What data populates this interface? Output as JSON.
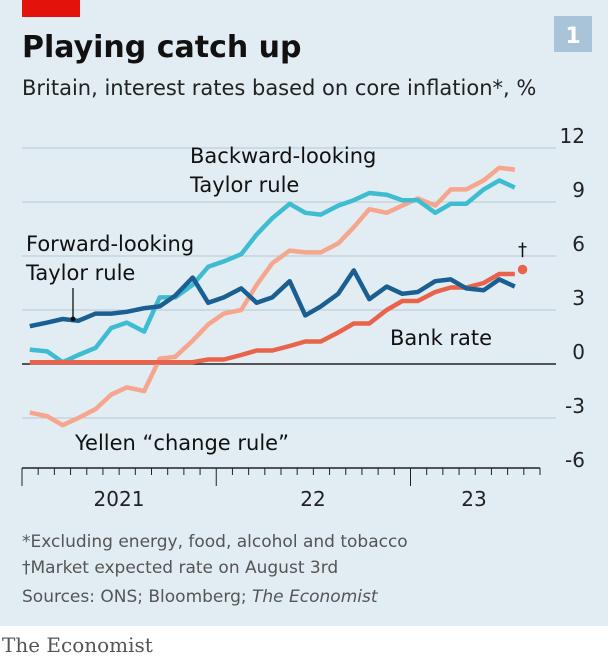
{
  "chart_data": {
    "type": "line",
    "title": "Playing catch up",
    "chart_number": "1",
    "subtitle": "Britain, interest rates based on core inflation*, %",
    "x": [
      2021.04,
      2021.13,
      2021.21,
      2021.29,
      2021.38,
      2021.46,
      2021.54,
      2021.63,
      2021.71,
      2021.79,
      2021.88,
      2021.96,
      2022.04,
      2022.13,
      2022.21,
      2022.29,
      2022.38,
      2022.46,
      2022.54,
      2022.63,
      2022.71,
      2022.79,
      2022.88,
      2022.96,
      2023.04,
      2023.13,
      2023.21,
      2023.29,
      2023.38,
      2023.46,
      2023.54
    ],
    "xlim": [
      2021,
      2023.67
    ],
    "xticks": [
      {
        "value": 2021.5,
        "label": "2021"
      },
      {
        "value": 2022.5,
        "label": "22"
      },
      {
        "value": 2023.33,
        "label": "23"
      }
    ],
    "ylim": [
      -6,
      12
    ],
    "yticks": [
      -6,
      -3,
      0,
      3,
      6,
      9,
      12
    ],
    "grid": true,
    "series": [
      {
        "label": [
          "Yellen “change rule”"
        ],
        "color": "#f6a68c",
        "values": [
          -2.7,
          -2.9,
          -3.4,
          -3.0,
          -2.5,
          -1.7,
          -1.3,
          -1.5,
          0.3,
          0.4,
          1.3,
          2.2,
          2.8,
          3.0,
          4.4,
          5.6,
          6.3,
          6.2,
          6.2,
          6.7,
          7.6,
          8.6,
          8.4,
          8.8,
          9.2,
          8.8,
          9.7,
          9.7,
          10.2,
          10.9,
          10.8
        ]
      },
      {
        "label": [
          "Backward-looking",
          "Taylor rule"
        ],
        "color": "#3ebcd2",
        "values": [
          0.8,
          0.7,
          0.1,
          0.5,
          0.9,
          2.0,
          2.3,
          1.8,
          3.7,
          3.7,
          4.4,
          5.4,
          5.7,
          6.1,
          7.2,
          8.1,
          8.9,
          8.4,
          8.3,
          8.8,
          9.1,
          9.5,
          9.4,
          9.1,
          9.1,
          8.4,
          8.9,
          8.9,
          9.7,
          10.2,
          9.8
        ]
      },
      {
        "label": [
          "Bank rate"
        ],
        "color": "#e8634a",
        "values": [
          0.1,
          0.1,
          0.1,
          0.1,
          0.1,
          0.1,
          0.1,
          0.1,
          0.1,
          0.1,
          0.1,
          0.25,
          0.25,
          0.5,
          0.75,
          0.75,
          1.0,
          1.25,
          1.25,
          1.75,
          2.25,
          2.25,
          3.0,
          3.5,
          3.5,
          4.0,
          4.25,
          4.25,
          4.5,
          5.0,
          5.0
        ]
      },
      {
        "label": [
          "Forward-looking",
          "Taylor rule"
        ],
        "color": "#1a5f91",
        "values": [
          2.1,
          2.3,
          2.5,
          2.4,
          2.8,
          2.8,
          2.9,
          3.1,
          3.2,
          3.8,
          4.8,
          3.4,
          3.7,
          4.2,
          3.4,
          3.7,
          4.6,
          2.7,
          3.2,
          3.9,
          5.2,
          3.6,
          4.3,
          3.9,
          4.0,
          4.6,
          4.7,
          4.2,
          4.1,
          4.7,
          4.3
        ]
      }
    ],
    "market_expected": {
      "x": 2023.58,
      "value": 5.25,
      "label": "†",
      "color": "#e8634a"
    },
    "footnotes": [
      "*Excluding energy, food, alcohol and tobacco",
      "†Market expected rate on August 3rd"
    ],
    "sources": "Sources: ONS; Bloomberg; ",
    "sources_publication": "The Economist"
  },
  "publisher": "The Economist"
}
